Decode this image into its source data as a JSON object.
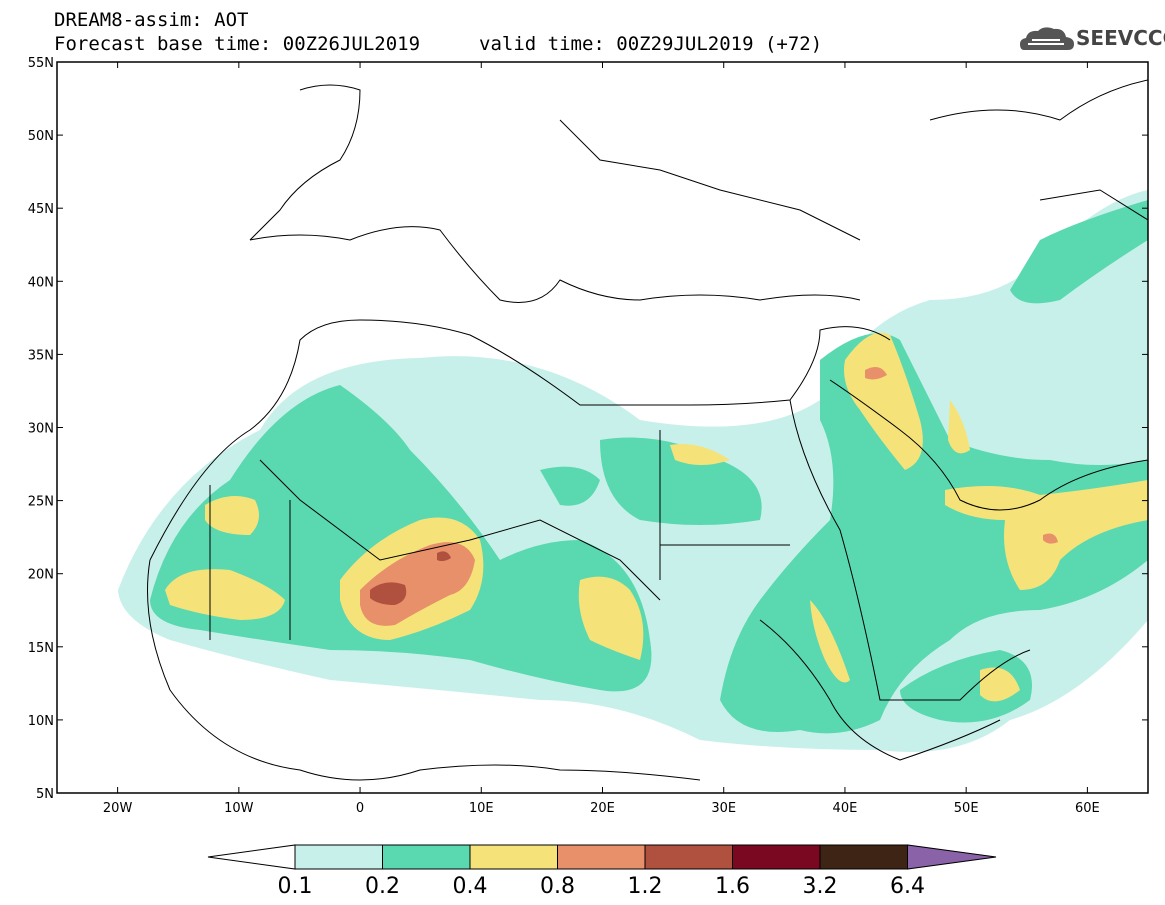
{
  "header": {
    "title": "DREAM8-assim: AOT",
    "base_time": "Forecast base time: 00Z26JUL2019",
    "valid_time": "valid time: 00Z29JUL2019 (+72)",
    "logo": "SEEVCCC"
  },
  "map": {
    "lat_labels": [
      "55N",
      "50N",
      "45N",
      "40N",
      "35N",
      "30N",
      "25N",
      "20N",
      "15N",
      "10N",
      "5N"
    ],
    "lon_labels": [
      "20W",
      "10W",
      "0",
      "10E",
      "20E",
      "30E",
      "40E",
      "50E",
      "60E"
    ],
    "lat_range": [
      5,
      55
    ],
    "lon_range": [
      -25,
      65
    ]
  },
  "colorbar": {
    "labels": [
      "0.1",
      "0.2",
      "0.4",
      "0.8",
      "1.2",
      "1.6",
      "3.2",
      "6.4"
    ],
    "colors": [
      "#c8f0ea",
      "#5ad8b0",
      "#f5e37a",
      "#e8906a",
      "#b0503e",
      "#7a0820",
      "#3e2414",
      "#8a62a8"
    ]
  }
}
